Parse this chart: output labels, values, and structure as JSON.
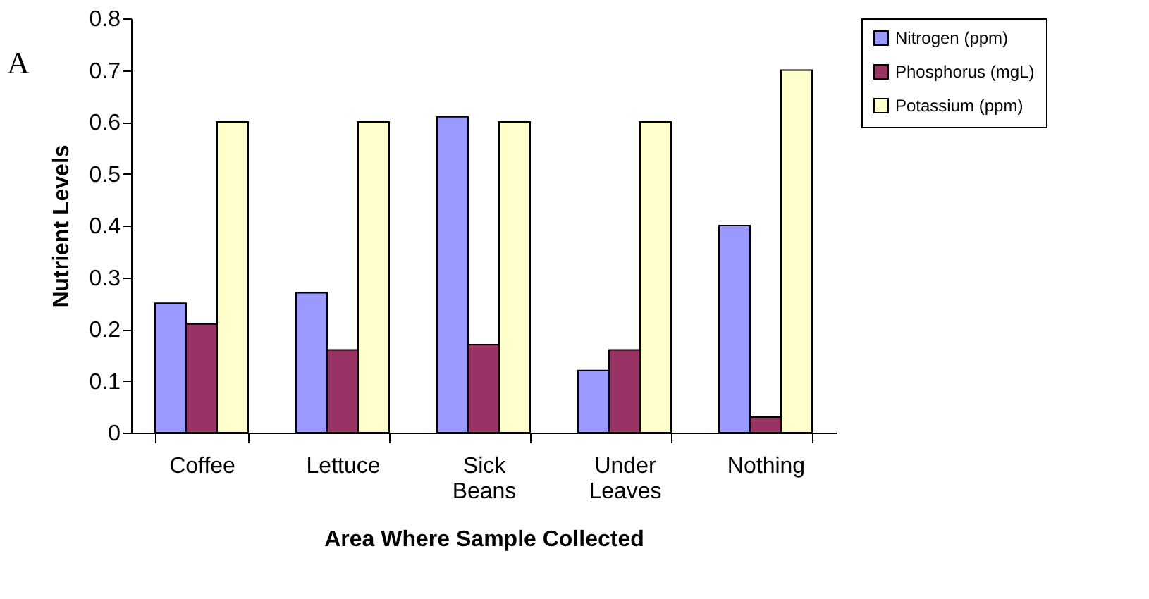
{
  "chart_data": {
    "type": "bar",
    "xlabel": "Area Where Sample Collected",
    "ylabel": "Nutrient Levels",
    "annotations": [
      "A"
    ],
    "categories": [
      "Coffee",
      "Lettuce",
      "Sick Beans",
      "Under Leaves",
      "Nothing"
    ],
    "series": [
      {
        "name": "Nitrogen (ppm)",
        "color": "#9999ff",
        "values": [
          0.25,
          0.27,
          0.61,
          0.12,
          0.4
        ]
      },
      {
        "name": "Phosphorus (mgL)",
        "color": "#993366",
        "values": [
          0.21,
          0.16,
          0.17,
          0.16,
          0.03
        ]
      },
      {
        "name": "Potassium (ppm)",
        "color": "#ffffcc",
        "values": [
          0.6,
          0.6,
          0.6,
          0.6,
          0.7
        ]
      }
    ],
    "ylim": [
      0,
      0.8
    ],
    "yticks": [
      0,
      0.1,
      0.2,
      0.3,
      0.4,
      0.5,
      0.6,
      0.7,
      0.8
    ],
    "grid": false,
    "legend": "right"
  }
}
